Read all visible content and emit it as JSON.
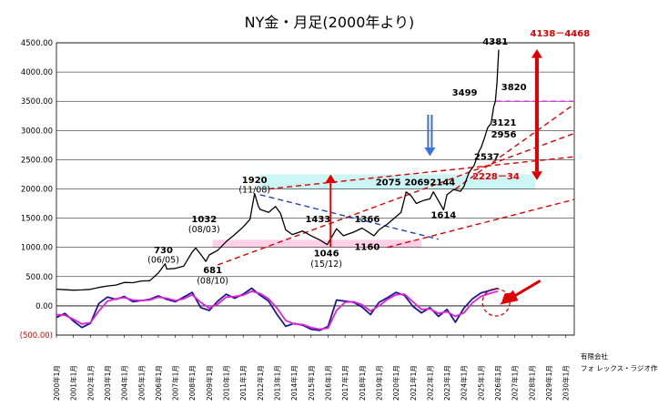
{
  "chart_data": {
    "type": "line",
    "title": "NY金・月足(2000年より)",
    "xlabel": "",
    "ylabel": "",
    "ylim": [
      -500,
      4500
    ],
    "yticks": [
      "4500.00",
      "4000.00",
      "3500.00",
      "3000.00",
      "2500.00",
      "2000.00",
      "1500.00",
      "1000.00",
      "500.00",
      "0.00",
      "(500.00)"
    ],
    "ytick_values": [
      4500,
      4000,
      3500,
      3000,
      2500,
      2000,
      1500,
      1000,
      500,
      0,
      -500
    ],
    "xticks": [
      "2000年1月",
      "2001年1月",
      "2002年1月",
      "2003年1月",
      "2004年1月",
      "2005年1月",
      "2006年1月",
      "2007年1月",
      "2008年1月",
      "2009年1月",
      "2010年1月",
      "2011年1月",
      "2012年1月",
      "2013年1月",
      "2014年1月",
      "2015年1月",
      "2016年1月",
      "2017年1月",
      "2018年1月",
      "2019年1月",
      "2020年1月",
      "2021年1月",
      "2022年1月",
      "2023年1月",
      "2024年1月",
      "2025年1月",
      "2026年1月",
      "2027年1月",
      "2028年1月",
      "2029年1月",
      "2030年1月"
    ],
    "xlim": [
      2000.0,
      2030.5
    ],
    "grid": true,
    "series": [
      {
        "color": "#000000",
        "x": [
          2000.0,
          2000.5,
          2001.0,
          2001.5,
          2002.0,
          2002.5,
          2003.0,
          2003.5,
          2004.0,
          2004.5,
          2005.0,
          2005.5,
          2006.0,
          2006.4,
          2006.5,
          2007.0,
          2007.5,
          2008.0,
          2008.2,
          2008.5,
          2008.8,
          2009.0,
          2009.5,
          2010.0,
          2010.5,
          2011.0,
          2011.4,
          2011.67,
          2011.9,
          2012.0,
          2012.5,
          2012.9,
          2013.2,
          2013.5,
          2013.9,
          2014.5,
          2015.0,
          2015.5,
          2015.95,
          2016.5,
          2016.9,
          2017.5,
          2018.0,
          2018.7,
          2019.0,
          2019.5,
          2019.9,
          2020.3,
          2020.6,
          2020.9,
          2021.2,
          2021.6,
          2022.0,
          2022.2,
          2022.8,
          2023.0,
          2023.4,
          2023.8,
          2024.0,
          2024.3,
          2024.6,
          2024.9,
          2025.0,
          2025.2,
          2025.4,
          2025.6,
          2025.75,
          2025.85,
          2025.95,
          2026.0,
          2026.05
        ],
        "y": [
          285,
          275,
          268,
          272,
          282,
          315,
          340,
          355,
          400,
          395,
          425,
          430,
          560,
          720,
          630,
          640,
          680,
          920,
          990,
          880,
          760,
          870,
          950,
          1100,
          1220,
          1350,
          1480,
          1920,
          1700,
          1650,
          1600,
          1700,
          1580,
          1300,
          1220,
          1280,
          1200,
          1130,
          1046,
          1320,
          1200,
          1260,
          1330,
          1200,
          1300,
          1400,
          1500,
          1600,
          1950,
          1880,
          1750,
          1800,
          1830,
          1950,
          1640,
          1900,
          1990,
          1960,
          2040,
          2280,
          2400,
          2650,
          2700,
          2860,
          3050,
          3121,
          3400,
          3499,
          3820,
          4100,
          4381
        ]
      },
      {
        "color": "#1a1a8c",
        "x": [
          2000.0,
          2000.5,
          2001.0,
          2001.5,
          2002.0,
          2002.5,
          2003.0,
          2003.5,
          2004.0,
          2004.5,
          2005.0,
          2005.5,
          2006.0,
          2006.5,
          2007.0,
          2007.5,
          2008.0,
          2008.5,
          2009.0,
          2009.5,
          2010.0,
          2010.5,
          2011.0,
          2011.5,
          2012.0,
          2012.5,
          2013.0,
          2013.5,
          2014.0,
          2014.5,
          2015.0,
          2015.5,
          2016.0,
          2016.5,
          2017.0,
          2017.5,
          2018.0,
          2018.5,
          2019.0,
          2019.5,
          2020.0,
          2020.5,
          2021.0,
          2021.5,
          2022.0,
          2022.5,
          2023.0,
          2023.5,
          2024.0,
          2024.5,
          2025.0,
          2025.5,
          2026.0
        ],
        "y": [
          -200,
          -130,
          -260,
          -370,
          -300,
          40,
          150,
          110,
          160,
          70,
          90,
          110,
          170,
          110,
          70,
          150,
          230,
          -30,
          -80,
          80,
          200,
          130,
          200,
          300,
          180,
          80,
          -150,
          -350,
          -300,
          -330,
          -400,
          -420,
          -350,
          100,
          80,
          60,
          -20,
          -150,
          60,
          140,
          230,
          180,
          -10,
          -120,
          -30,
          -180,
          -60,
          -280,
          -40,
          120,
          220,
          260,
          300
        ]
      },
      {
        "color": "#e020e0",
        "x": [
          2000.0,
          2000.5,
          2001.0,
          2001.5,
          2002.0,
          2002.5,
          2003.0,
          2003.5,
          2004.0,
          2004.5,
          2005.0,
          2005.5,
          2006.0,
          2006.5,
          2007.0,
          2007.5,
          2008.0,
          2008.5,
          2009.0,
          2009.5,
          2010.0,
          2010.5,
          2011.0,
          2011.5,
          2012.0,
          2012.5,
          2013.0,
          2013.5,
          2014.0,
          2014.5,
          2015.0,
          2015.5,
          2016.0,
          2016.5,
          2017.0,
          2017.5,
          2018.0,
          2018.5,
          2019.0,
          2019.5,
          2020.0,
          2020.5,
          2021.0,
          2021.5,
          2022.0,
          2022.5,
          2023.0,
          2023.5,
          2024.0,
          2024.5,
          2025.0,
          2025.5,
          2026.0
        ],
        "y": [
          -150,
          -160,
          -230,
          -310,
          -290,
          -90,
          80,
          120,
          140,
          100,
          90,
          100,
          150,
          130,
          90,
          120,
          190,
          60,
          -40,
          30,
          150,
          160,
          180,
          250,
          210,
          120,
          -40,
          -250,
          -310,
          -320,
          -370,
          -400,
          -380,
          -80,
          60,
          70,
          20,
          -90,
          0,
          110,
          190,
          200,
          70,
          -60,
          -50,
          -130,
          -100,
          -180,
          -120,
          50,
          160,
          210,
          250
        ]
      }
    ],
    "annotations": [
      "4381",
      "4138－4468",
      "3820",
      "3499",
      "3121",
      "2956",
      "2537",
      "2228－34",
      "2075",
      "2069",
      "2144",
      "1614",
      "1920",
      "(11/08)",
      "1032",
      "(08/03)",
      "730",
      "(06/05)",
      "681",
      "(08/10)",
      "1433",
      "1366",
      "1160",
      "1046",
      "(15/12)"
    ],
    "shaded_bands": [
      {
        "color": "#ccf5f5",
        "ymin": 1990,
        "ymax": 2250,
        "xmin": 2012.0,
        "xmax": 2024.0
      },
      {
        "color": "#ccf5f5",
        "ymin": 1990,
        "ymax": 2250,
        "xmin": 2024.0,
        "xmax": 2028.2
      },
      {
        "color": "#ffd0e8",
        "ymin": 1000,
        "ymax": 1130,
        "xmin": 2009.2,
        "xmax": 2021.5
      }
    ],
    "trendlines": [
      {
        "color": "#e00000",
        "dashed": true,
        "from": [
          2009.5,
          700
        ],
        "to": [
          2030.5,
          2950
        ]
      },
      {
        "color": "#e00000",
        "dashed": true,
        "from": [
          2012.5,
          2000
        ],
        "to": [
          2030.5,
          2550
        ]
      },
      {
        "color": "#e00000",
        "dashed": true,
        "from": [
          2019.5,
          1000
        ],
        "to": [
          2030.5,
          1820
        ]
      },
      {
        "color": "#e00000",
        "dashed": true,
        "from": [
          2023.5,
          2000
        ],
        "to": [
          2030.5,
          3450
        ]
      },
      {
        "color": "#2040c0",
        "dashed": true,
        "from": [
          2012.0,
          1900
        ],
        "to": [
          2022.5,
          1140
        ]
      },
      {
        "color": "#e020e0",
        "dashed": true,
        "from": [
          2025.9,
          3500
        ],
        "to": [
          2030.5,
          3500
        ]
      }
    ]
  },
  "credit": {
    "line1": "有限会社",
    "line2": "フォ レックス・ラジオ作成"
  }
}
